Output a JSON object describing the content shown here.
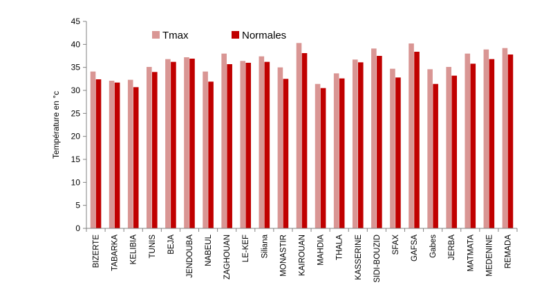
{
  "chart_data": {
    "type": "bar",
    "title": "",
    "xlabel": "",
    "ylabel": "Température en °c",
    "ylim": [
      0,
      45
    ],
    "yticks": [
      0,
      5,
      10,
      15,
      20,
      25,
      30,
      35,
      40,
      45
    ],
    "grid": false,
    "legend_position": "top",
    "categories": [
      "BIZERTE",
      "TABARKA",
      "KELIBIA",
      "TUNIS",
      "BEJA",
      "JENDOUBA",
      "NABEUL",
      "ZAGHOUAN",
      "LE-KEF",
      "Siliana",
      "MONASTIR",
      "KAIROUAN",
      "MAHDIA",
      "THALA",
      "KASSERINE",
      "SIDI-BOUZID",
      "SFAX",
      "GAFSA",
      "Gabes",
      "JERBA",
      "MATMATA",
      "MEDENINE",
      "REMADA"
    ],
    "series": [
      {
        "name": "Tmax",
        "color": "#d99694",
        "values": [
          34.1,
          32.1,
          32.3,
          35.1,
          36.8,
          37.2,
          34.1,
          38.0,
          36.4,
          37.4,
          35.0,
          40.3,
          31.4,
          33.7,
          36.7,
          39.1,
          34.7,
          40.2,
          34.6,
          35.1,
          38.0,
          38.9,
          39.2
        ]
      },
      {
        "name": "Normales",
        "color": "#c00000",
        "values": [
          32.4,
          31.7,
          30.7,
          34.0,
          36.2,
          36.9,
          31.9,
          35.7,
          36.0,
          36.2,
          32.5,
          38.1,
          30.5,
          32.6,
          36.1,
          37.5,
          32.8,
          38.4,
          31.4,
          33.2,
          35.8,
          36.8,
          37.8
        ]
      }
    ]
  }
}
